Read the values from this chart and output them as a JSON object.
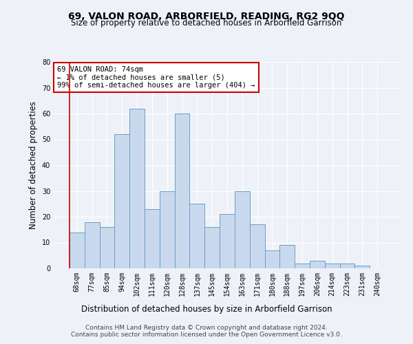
{
  "title": "69, VALON ROAD, ARBORFIELD, READING, RG2 9QQ",
  "subtitle": "Size of property relative to detached houses in Arborfield Garrison",
  "xlabel": "Distribution of detached houses by size in Arborfield Garrison",
  "ylabel": "Number of detached properties",
  "bin_labels": [
    "68sqm",
    "77sqm",
    "85sqm",
    "94sqm",
    "102sqm",
    "111sqm",
    "120sqm",
    "128sqm",
    "137sqm",
    "145sqm",
    "154sqm",
    "163sqm",
    "171sqm",
    "180sqm",
    "188sqm",
    "197sqm",
    "206sqm",
    "214sqm",
    "223sqm",
    "231sqm",
    "240sqm"
  ],
  "bar_heights": [
    14,
    18,
    16,
    52,
    62,
    23,
    30,
    60,
    25,
    16,
    21,
    30,
    17,
    7,
    9,
    2,
    3,
    2,
    2,
    1,
    0
  ],
  "bar_color": "#c9d9ed",
  "bar_edge_color": "#6b9dc8",
  "ylim": [
    0,
    80
  ],
  "yticks": [
    0,
    10,
    20,
    30,
    40,
    50,
    60,
    70,
    80
  ],
  "annotation_text": "69 VALON ROAD: 74sqm\n← 1% of detached houses are smaller (5)\n99% of semi-detached houses are larger (404) →",
  "annotation_box_color": "#ffffff",
  "annotation_box_edge": "#cc0000",
  "footer_line1": "Contains HM Land Registry data © Crown copyright and database right 2024.",
  "footer_line2": "Contains public sector information licensed under the Open Government Licence v3.0.",
  "bg_color": "#eef2f8",
  "plot_bg_color": "#eef2f8",
  "vline_x": -0.5,
  "title_fontsize": 10,
  "subtitle_fontsize": 8.5,
  "ylabel_fontsize": 8.5,
  "xlabel_fontsize": 8.5,
  "tick_fontsize": 7,
  "annot_fontsize": 7.5,
  "footer_fontsize": 6.5
}
